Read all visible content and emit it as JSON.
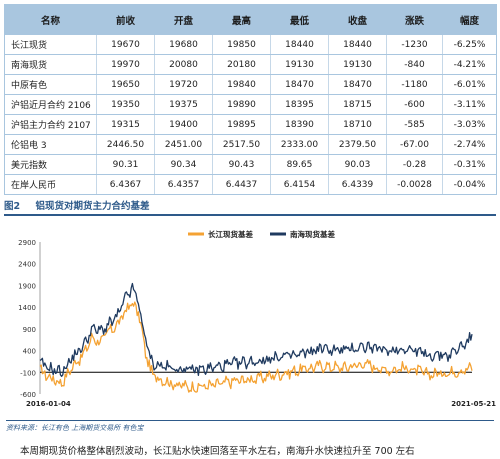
{
  "table": {
    "headers": [
      "名称",
      "前收",
      "开盘",
      "最高",
      "最低",
      "收盘",
      "涨跌",
      "幅度"
    ],
    "rows": [
      [
        "长江现货",
        "19670",
        "19680",
        "19850",
        "18440",
        "18440",
        "-1230",
        "-6.25%"
      ],
      [
        "南海现货",
        "19970",
        "20080",
        "20180",
        "19130",
        "19130",
        "-840",
        "-4.21%"
      ],
      [
        "中原有色",
        "19650",
        "19720",
        "19840",
        "18470",
        "18470",
        "-1180",
        "-6.01%"
      ],
      [
        "沪铝近月合约 2106",
        "19350",
        "19375",
        "19890",
        "18395",
        "18715",
        "-600",
        "-3.11%"
      ],
      [
        "沪铝主力合约 2107",
        "19315",
        "19400",
        "19895",
        "18390",
        "18710",
        "-585",
        "-3.03%"
      ],
      [
        "伦铝电 3",
        "2446.50",
        "2451.00",
        "2517.50",
        "2333.00",
        "2379.50",
        "-67.00",
        "-2.74%"
      ],
      [
        "美元指数",
        "90.31",
        "90.34",
        "90.43",
        "89.65",
        "90.03",
        "-0.28",
        "-0.31%"
      ],
      [
        "在岸人民币",
        "6.4367",
        "6.4357",
        "6.4437",
        "6.4154",
        "6.4339",
        "-0.0028",
        "-0.04%"
      ]
    ]
  },
  "figure": {
    "number": "图2",
    "title": "铝现货对期货主力合约基差",
    "source": "资料来源：长江有色  上海期货交易所  有色宝"
  },
  "chart_data": {
    "type": "line",
    "series": [
      {
        "name": "长江现货基差",
        "color": "#f4a233"
      },
      {
        "name": "南海现货基差",
        "color": "#1f3a5f"
      }
    ],
    "ylim": [
      -600,
      2900
    ],
    "yticks": [
      "2900",
      "2400",
      "1900",
      "1400",
      "900",
      "400",
      "-100",
      "-600"
    ],
    "x_start_label": "2016-01-04",
    "x_end_label": "2021-05-21",
    "x_range": [
      "2016-01-04",
      "2021-05-21"
    ],
    "anchors": {
      "长江现货基差": [
        [
          0,
          -50
        ],
        [
          0.02,
          -200
        ],
        [
          0.05,
          -350
        ],
        [
          0.08,
          100
        ],
        [
          0.1,
          300
        ],
        [
          0.12,
          700
        ],
        [
          0.14,
          600
        ],
        [
          0.16,
          850
        ],
        [
          0.18,
          1000
        ],
        [
          0.2,
          1350
        ],
        [
          0.215,
          1500
        ],
        [
          0.23,
          1200
        ],
        [
          0.245,
          300
        ],
        [
          0.26,
          -150
        ],
        [
          0.3,
          -350
        ],
        [
          0.35,
          -450
        ],
        [
          0.4,
          -400
        ],
        [
          0.45,
          -300
        ],
        [
          0.5,
          -250
        ],
        [
          0.55,
          -150
        ],
        [
          0.6,
          -50
        ],
        [
          0.65,
          50
        ],
        [
          0.7,
          0
        ],
        [
          0.75,
          100
        ],
        [
          0.8,
          -50
        ],
        [
          0.85,
          0
        ],
        [
          0.9,
          -150
        ],
        [
          0.95,
          -100
        ],
        [
          1.0,
          0
        ]
      ],
      "南海现货基差": [
        [
          0,
          100
        ],
        [
          0.02,
          0
        ],
        [
          0.05,
          -100
        ],
        [
          0.08,
          300
        ],
        [
          0.1,
          500
        ],
        [
          0.12,
          900
        ],
        [
          0.14,
          850
        ],
        [
          0.16,
          1000
        ],
        [
          0.18,
          1200
        ],
        [
          0.2,
          1650
        ],
        [
          0.215,
          1850
        ],
        [
          0.23,
          1400
        ],
        [
          0.245,
          600
        ],
        [
          0.26,
          100
        ],
        [
          0.3,
          0
        ],
        [
          0.35,
          -50
        ],
        [
          0.4,
          0
        ],
        [
          0.45,
          100
        ],
        [
          0.5,
          150
        ],
        [
          0.55,
          250
        ],
        [
          0.6,
          300
        ],
        [
          0.65,
          450
        ],
        [
          0.7,
          400
        ],
        [
          0.75,
          500
        ],
        [
          0.8,
          400
        ],
        [
          0.85,
          450
        ],
        [
          0.9,
          300
        ],
        [
          0.95,
          300
        ],
        [
          1.0,
          700
        ]
      ]
    }
  },
  "body_text": "本周期现货价格整体剧烈波动，长江贴水快速回落至平水左右，南海升水快速拉升至 700 左右"
}
